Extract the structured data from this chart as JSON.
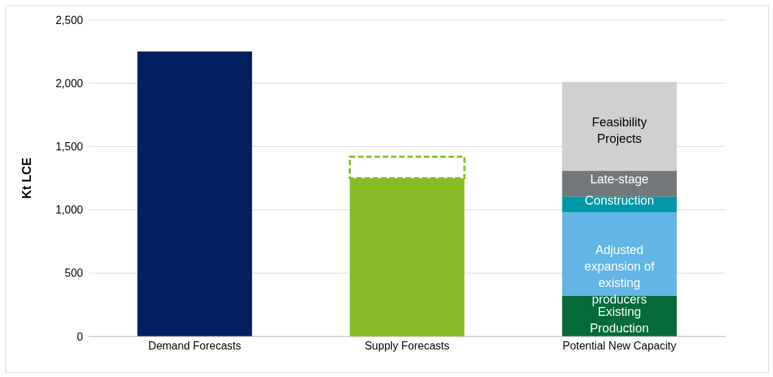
{
  "chart_data": {
    "type": "bar",
    "stacked": true,
    "ylabel": "Kt LCE",
    "categories": [
      "Demand Forecasts",
      "Supply Forecasts",
      "Potential New Capacity"
    ],
    "series": [
      {
        "color": "#002060",
        "values": [
          2250,
          null,
          null
        ]
      },
      {
        "color": "#86bc25",
        "values": [
          null,
          1250,
          null
        ]
      },
      {
        "color": "#86bc25",
        "line_style": "dashed",
        "values": [
          null,
          170,
          null
        ]
      },
      {
        "name": "Existing Production",
        "color": "#046a38",
        "values": [
          null,
          null,
          320
        ]
      },
      {
        "name": "Adjusted expansion of existing producers",
        "color": "#62b5e5",
        "values": [
          null,
          null,
          660
        ]
      },
      {
        "name": "Construction",
        "color": "#0097a9",
        "values": [
          null,
          null,
          125
        ]
      },
      {
        "name": "Late-stage",
        "color": "#75787b",
        "values": [
          null,
          null,
          205
        ]
      },
      {
        "name": "Feasibility Projects",
        "color": "#d0d0ce",
        "values": [
          null,
          null,
          700
        ]
      }
    ],
    "ylim": [
      0,
      2500
    ],
    "yticks": [
      0,
      {
        "value": 500,
        "label": "500"
      },
      {
        "value": 1000,
        "label": "1,000"
      },
      {
        "value": 1500,
        "label": "1,500"
      },
      {
        "value": 2000,
        "label": "2,000"
      },
      {
        "value": 2500,
        "label": "2,500"
      }
    ],
    "grid": "y",
    "legend": false
  }
}
